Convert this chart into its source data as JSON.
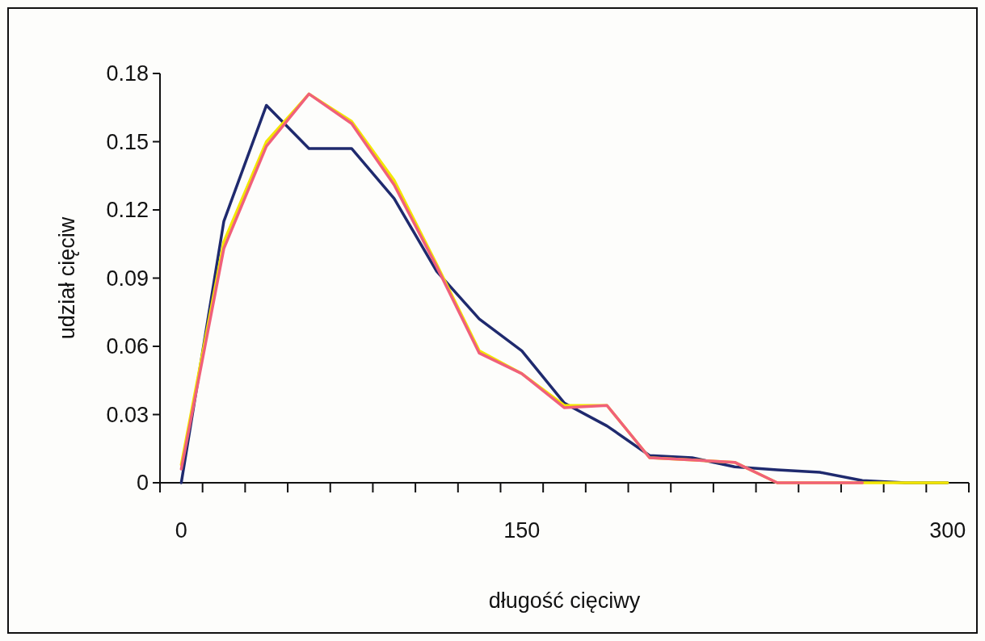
{
  "chart_data": {
    "type": "line",
    "xlabel": "długość cięciwy",
    "ylabel": "udział cięciw",
    "categories": [
      "0",
      null,
      null,
      null,
      null,
      null,
      null,
      null,
      "150",
      null,
      null,
      null,
      null,
      null,
      null,
      null,
      null,
      null,
      "300"
    ],
    "ylim": [
      0,
      0.18
    ],
    "yticks": [
      {
        "value": 0,
        "label": "0"
      },
      0.03,
      0.06,
      0.09,
      0.12,
      0.15,
      0.18
    ],
    "grid": false,
    "marker": "none",
    "line_style": "solid",
    "series": [
      {
        "color": "#1f2a6e",
        "values": [
          0.0,
          0.115,
          0.166,
          0.147,
          0.147,
          0.125,
          0.093,
          0.072,
          0.058,
          0.035,
          0.025,
          0.012,
          0.011,
          0.007,
          0.0057,
          0.0046,
          0.001,
          0,
          0
        ]
      },
      {
        "color": "#f2e600",
        "values": [
          0.008,
          0.106,
          0.15,
          0.171,
          0.159,
          0.133,
          0.096,
          0.058,
          0.048,
          0.034,
          0.034,
          0.011,
          0.01,
          0.009,
          0,
          0,
          0,
          0,
          0
        ]
      },
      {
        "color": "#f0607a",
        "values": [
          0.006,
          0.103,
          0.148,
          0.171,
          0.158,
          0.131,
          0.095,
          0.057,
          0.048,
          0.033,
          0.034,
          0.011,
          0.01,
          0.009,
          0,
          0,
          0,
          null,
          null
        ]
      }
    ]
  }
}
